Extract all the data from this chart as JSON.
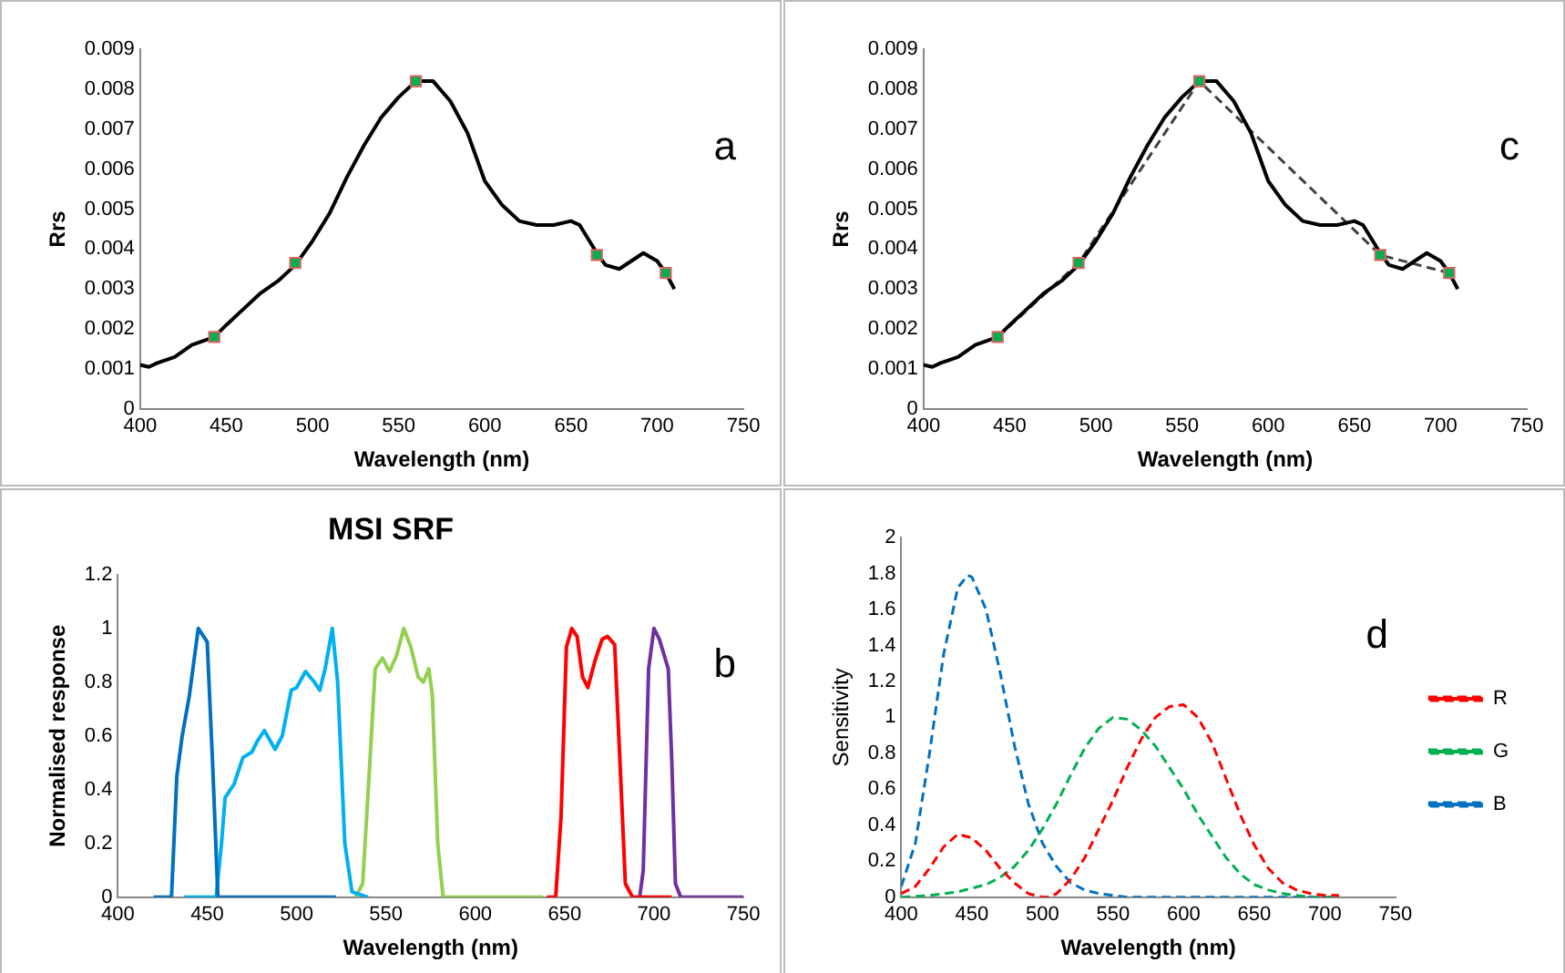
{
  "chart_data": [
    {
      "type": "line",
      "xlabel": "Wavelength (nm)",
      "ylabel": "Rrs",
      "annotations": [
        "a"
      ],
      "xlim": [
        400,
        750
      ],
      "xticks": [
        400,
        450,
        500,
        550,
        600,
        650,
        700,
        750
      ],
      "ylim": [
        0,
        0.009
      ],
      "yticks": [
        0,
        0.001,
        0.002,
        0.003,
        0.004,
        0.005,
        0.006,
        0.007,
        0.008,
        0.009
      ],
      "series": [
        {
          "color": "#000000",
          "x": [
            400,
            405,
            410,
            420,
            430,
            443,
            450,
            460,
            470,
            480,
            490,
            500,
            510,
            520,
            530,
            540,
            550,
            560,
            570,
            580,
            590,
            600,
            610,
            620,
            630,
            640,
            650,
            655,
            665,
            670,
            678,
            685,
            692,
            700,
            705,
            710
          ],
          "values": [
            0.0011,
            0.00105,
            0.00115,
            0.0013,
            0.0016,
            0.0018,
            0.0021,
            0.0025,
            0.0029,
            0.0032,
            0.0036,
            0.0042,
            0.0049,
            0.0058,
            0.0066,
            0.0073,
            0.0078,
            0.0082,
            0.0082,
            0.0077,
            0.0069,
            0.0057,
            0.0051,
            0.0047,
            0.0046,
            0.0046,
            0.0047,
            0.0046,
            0.0039,
            0.0036,
            0.0035,
            0.0037,
            0.0039,
            0.0037,
            0.0034,
            0.003
          ]
        },
        {
          "type": "scatter",
          "marker": "square",
          "color": "#00b050",
          "x": [
            443,
            490,
            560,
            665,
            705
          ],
          "values": [
            0.0018,
            0.00365,
            0.0082,
            0.00385,
            0.0034
          ]
        }
      ]
    },
    {
      "type": "line",
      "xlabel": "Wavelength (nm)",
      "ylabel": "Rrs",
      "annotations": [
        "c"
      ],
      "xlim": [
        400,
        750
      ],
      "xticks": [
        400,
        450,
        500,
        550,
        600,
        650,
        700,
        750
      ],
      "ylim": [
        0,
        0.009
      ],
      "yticks": [
        0,
        0.001,
        0.002,
        0.003,
        0.004,
        0.005,
        0.006,
        0.007,
        0.008,
        0.009
      ],
      "series": [
        {
          "color": "#000000",
          "x": [
            400,
            405,
            410,
            420,
            430,
            443,
            450,
            460,
            470,
            480,
            490,
            500,
            510,
            520,
            530,
            540,
            550,
            560,
            570,
            580,
            590,
            600,
            610,
            620,
            630,
            640,
            650,
            655,
            665,
            670,
            678,
            685,
            692,
            700,
            705,
            710
          ],
          "values": [
            0.0011,
            0.00105,
            0.00115,
            0.0013,
            0.0016,
            0.0018,
            0.0021,
            0.0025,
            0.0029,
            0.0032,
            0.0036,
            0.0042,
            0.0049,
            0.0058,
            0.0066,
            0.0073,
            0.0078,
            0.0082,
            0.0082,
            0.0077,
            0.0069,
            0.0057,
            0.0051,
            0.0047,
            0.0046,
            0.0046,
            0.0047,
            0.0046,
            0.0039,
            0.0036,
            0.0035,
            0.0037,
            0.0039,
            0.0037,
            0.0034,
            0.003
          ]
        },
        {
          "line_style": "dashed",
          "color": "#404040",
          "x": [
            443,
            490,
            560,
            665,
            705
          ],
          "values": [
            0.0018,
            0.00365,
            0.0082,
            0.00385,
            0.0034
          ]
        },
        {
          "type": "scatter",
          "marker": "square",
          "color": "#00b050",
          "x": [
            443,
            490,
            560,
            665,
            705
          ],
          "values": [
            0.0018,
            0.00365,
            0.0082,
            0.00385,
            0.0034
          ]
        }
      ]
    },
    {
      "type": "line",
      "title": "MSI SRF",
      "xlabel": "Wavelength (nm)",
      "ylabel": "Normalised response",
      "annotations": [
        "b"
      ],
      "xlim": [
        400,
        750
      ],
      "xticks": [
        400,
        450,
        500,
        550,
        600,
        650,
        700,
        750
      ],
      "ylim": [
        0,
        1.2
      ],
      "yticks": [
        0,
        0.2,
        0.4,
        0.6,
        0.8,
        1,
        1.2
      ],
      "series": [
        {
          "color": "#0070c0",
          "x": [
            420,
            430,
            433,
            436,
            440,
            445,
            448,
            450,
            453,
            456,
            460,
            522
          ],
          "values": [
            0,
            0,
            0.45,
            0.6,
            0.75,
            1,
            0.97,
            0.95,
            0.5,
            0,
            0,
            0
          ]
        },
        {
          "color": "#00b0f0",
          "x": [
            437,
            455,
            458,
            460,
            465,
            470,
            475,
            478,
            482,
            488,
            492,
            497,
            500,
            505,
            510,
            513,
            516,
            520,
            523,
            527,
            531,
            540
          ],
          "values": [
            0,
            0,
            0.2,
            0.37,
            0.42,
            0.52,
            0.54,
            0.58,
            0.62,
            0.55,
            0.6,
            0.77,
            0.78,
            0.84,
            0.8,
            0.77,
            0.85,
            1,
            0.8,
            0.2,
            0.02,
            0
          ]
        },
        {
          "color": "#92d050",
          "x": [
            533,
            537,
            541,
            544,
            548,
            552,
            556,
            560,
            564,
            568,
            571,
            574,
            576,
            579,
            582,
            600,
            638
          ],
          "values": [
            0,
            0.05,
            0.5,
            0.85,
            0.89,
            0.84,
            0.9,
            1,
            0.93,
            0.82,
            0.8,
            0.85,
            0.75,
            0.2,
            0,
            0,
            0
          ]
        },
        {
          "color": "#ff0000",
          "x": [
            640,
            645,
            648,
            651,
            654,
            657,
            660,
            663,
            667,
            671,
            674,
            678,
            681,
            684,
            688,
            710
          ],
          "values": [
            0,
            0,
            0.3,
            0.93,
            1,
            0.97,
            0.82,
            0.78,
            0.88,
            0.96,
            0.97,
            0.94,
            0.5,
            0.05,
            0,
            0
          ]
        },
        {
          "color": "#7030a0",
          "x": [
            692,
            694,
            697,
            700,
            703,
            708,
            710,
            712,
            715,
            750
          ],
          "values": [
            0,
            0.1,
            0.85,
            1,
            0.96,
            0.85,
            0.5,
            0.05,
            0,
            0
          ]
        }
      ]
    },
    {
      "type": "line",
      "xlabel": "Wavelength (nm)",
      "ylabel": "Sensitivity",
      "annotations": [
        "d"
      ],
      "legend": "right",
      "line_style": "dashed",
      "xlim": [
        400,
        750
      ],
      "xticks": [
        400,
        450,
        500,
        550,
        600,
        650,
        700,
        750
      ],
      "ylim": [
        0,
        2
      ],
      "yticks": [
        0,
        0.2,
        0.4,
        0.6,
        0.8,
        1,
        1.2,
        1.4,
        1.6,
        1.8,
        2
      ],
      "series": [
        {
          "name": "R",
          "color": "#ff0000",
          "x": [
            400,
            410,
            420,
            430,
            440,
            450,
            460,
            470,
            480,
            490,
            500,
            505,
            510,
            520,
            530,
            540,
            550,
            560,
            570,
            580,
            590,
            600,
            610,
            620,
            630,
            640,
            650,
            660,
            670,
            680,
            690,
            700,
            710
          ],
          "values": [
            0.02,
            0.06,
            0.16,
            0.28,
            0.35,
            0.33,
            0.26,
            0.16,
            0.08,
            0.02,
            0,
            0,
            0.02,
            0.1,
            0.22,
            0.38,
            0.54,
            0.72,
            0.88,
            1,
            1.06,
            1.07,
            1,
            0.86,
            0.66,
            0.46,
            0.29,
            0.16,
            0.08,
            0.04,
            0.02,
            0.01,
            0.01
          ]
        },
        {
          "name": "G",
          "color": "#00b050",
          "x": [
            400,
            420,
            440,
            460,
            470,
            480,
            490,
            500,
            510,
            520,
            530,
            540,
            550,
            560,
            570,
            580,
            590,
            600,
            610,
            620,
            630,
            640,
            650,
            660,
            670,
            680,
            690,
            710
          ],
          "values": [
            0,
            0.01,
            0.03,
            0.07,
            0.11,
            0.17,
            0.26,
            0.38,
            0.52,
            0.68,
            0.83,
            0.94,
            1,
            0.99,
            0.93,
            0.84,
            0.72,
            0.6,
            0.46,
            0.34,
            0.22,
            0.13,
            0.07,
            0.04,
            0.02,
            0.01,
            0,
            0
          ]
        },
        {
          "name": "B",
          "color": "#0070c0",
          "x": [
            400,
            410,
            420,
            430,
            440,
            447,
            450,
            460,
            470,
            480,
            490,
            500,
            510,
            520,
            530,
            540,
            550,
            560,
            710
          ],
          "values": [
            0.06,
            0.3,
            0.8,
            1.35,
            1.72,
            1.79,
            1.78,
            1.6,
            1.25,
            0.85,
            0.52,
            0.3,
            0.17,
            0.08,
            0.04,
            0.02,
            0.01,
            0,
            0
          ]
        }
      ]
    }
  ]
}
